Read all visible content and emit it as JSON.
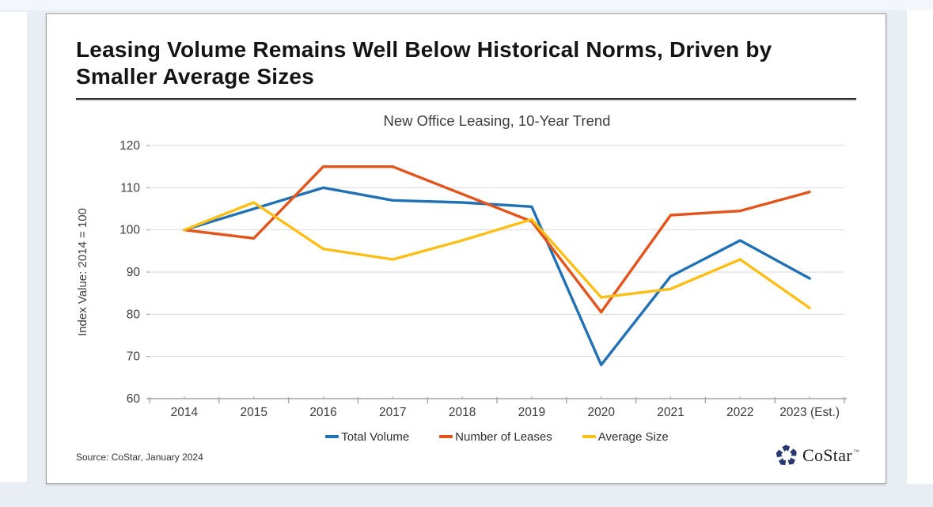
{
  "page": {
    "background": "#e9eef4",
    "top_strip_color": "#f3f6fa"
  },
  "slide": {
    "title": "Leasing Volume Remains Well Below Historical Norms, Driven by\nSmaller Average Sizes"
  },
  "chart_data": {
    "type": "line",
    "title": "New Office Leasing, 10-Year Trend",
    "xlabel": "",
    "ylabel": "Index Value: 2014 = 100",
    "ylim": [
      60,
      120
    ],
    "ytick_step": 10,
    "grid": "horizontal",
    "legend_position": "bottom",
    "categories": [
      "2014",
      "2015",
      "2016",
      "2017",
      "2018",
      "2019",
      "2020",
      "2021",
      "2022",
      "2023 (Est.)"
    ],
    "series": [
      {
        "name": "Total Volume",
        "color": "#2271B5",
        "values": [
          100,
          105,
          110,
          107,
          106.5,
          105.5,
          68,
          89,
          97.5,
          88.5
        ]
      },
      {
        "name": "Number of Leases",
        "color": "#E2541B",
        "values": [
          100,
          98,
          115,
          115,
          108.5,
          102,
          80.5,
          103.5,
          104.5,
          109
        ]
      },
      {
        "name": "Average Size",
        "color": "#FDBF17",
        "values": [
          100,
          106.5,
          95.5,
          93,
          97.5,
          102.5,
          84,
          86,
          93,
          81.5
        ]
      }
    ],
    "colors": {
      "gridline": "#d9d9d9",
      "axis": "#a6a6a6",
      "tick_label": "#3d3d3d"
    }
  },
  "footer": {
    "source": "Source: CoStar, January 2024",
    "logo_text": "CoStar",
    "logo_tm": "™",
    "logo_color": "#28376d"
  }
}
